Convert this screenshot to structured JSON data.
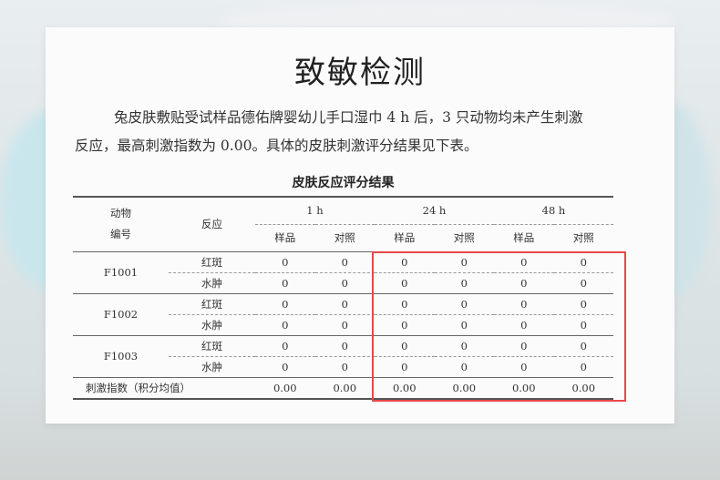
{
  "title": "致敏检测",
  "paragraph": {
    "line1": "兔皮肤敷贴受试样品德佑牌婴幼儿手口湿巾 4 h 后，3 只动物均未产生刺激",
    "line2": "反应，最高刺激指数为 0.00。具体的皮肤刺激评分结果见下表。"
  },
  "table": {
    "caption": "皮肤反应评分结果",
    "header": {
      "animal_line1": "动物",
      "animal_line2": "编号",
      "reaction": "反应",
      "times": [
        "1 h",
        "24 h",
        "48 h"
      ],
      "sub": [
        "样品",
        "对照",
        "样品",
        "对照",
        "样品",
        "对照"
      ]
    },
    "groups": [
      {
        "id": "F1001",
        "rows": [
          {
            "reaction": "红斑",
            "values": [
              "0",
              "0",
              "0",
              "0",
              "0",
              "0"
            ]
          },
          {
            "reaction": "水肿",
            "values": [
              "0",
              "0",
              "0",
              "0",
              "0",
              "0"
            ]
          }
        ]
      },
      {
        "id": "F1002",
        "rows": [
          {
            "reaction": "红斑",
            "values": [
              "0",
              "0",
              "0",
              "0",
              "0",
              "0"
            ]
          },
          {
            "reaction": "水肿",
            "values": [
              "0",
              "0",
              "0",
              "0",
              "0",
              "0"
            ]
          }
        ]
      },
      {
        "id": "F1003",
        "rows": [
          {
            "reaction": "红斑",
            "values": [
              "0",
              "0",
              "0",
              "0",
              "0",
              "0"
            ]
          },
          {
            "reaction": "水肿",
            "values": [
              "0",
              "0",
              "0",
              "0",
              "0",
              "0"
            ]
          }
        ]
      }
    ],
    "index_row": {
      "label": "刺激指数（积分均值）",
      "values": [
        "0.00",
        "0.00",
        "0.00",
        "0.00",
        "0.00",
        "0.00"
      ]
    }
  },
  "highlight_color": "#e84848"
}
